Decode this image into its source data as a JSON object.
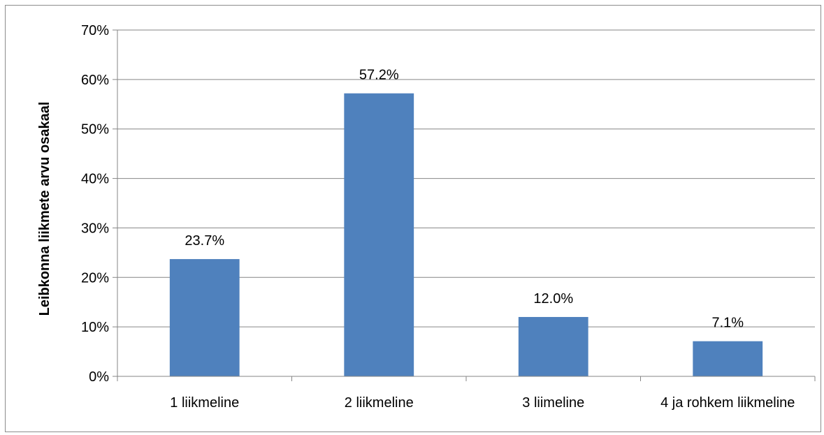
{
  "chart_data": {
    "type": "bar",
    "title": "",
    "xlabel": "",
    "ylabel": "Leibkonna liikmete arvu osakaal",
    "categories": [
      "1 liikmeline",
      "2 liikmeline",
      "3 liimeline",
      "4 ja rohkem liikmeline"
    ],
    "values": [
      23.7,
      57.2,
      12.0,
      7.1
    ],
    "data_labels": [
      "23.7%",
      "57.2%",
      "12.0%",
      "7.1%"
    ],
    "ylim": [
      0,
      70
    ],
    "yticks": [
      0,
      10,
      20,
      30,
      40,
      50,
      60,
      70
    ],
    "ytick_labels": [
      "0%",
      "10%",
      "20%",
      "30%",
      "40%",
      "50%",
      "60%",
      "70%"
    ],
    "grid": true,
    "legend": "none",
    "colors": {
      "bar": "#4f81bd",
      "grid": "#868686",
      "axis": "#868686"
    }
  }
}
